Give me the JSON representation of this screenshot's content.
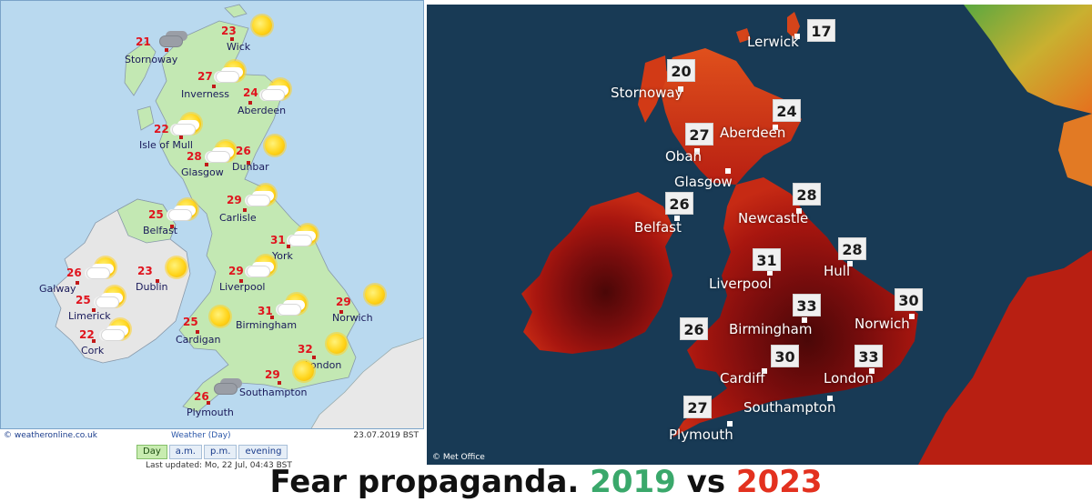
{
  "caption": {
    "prefix": "Fear propaganda.",
    "year1": "2019",
    "vs": "vs",
    "year2": "2023"
  },
  "left_map": {
    "source": "© weatheronline.co.uk",
    "product": "Weather (Day)",
    "date": "23.07.2019  BST",
    "tabs": [
      "Day",
      "a.m.",
      "p.m.",
      "evening"
    ],
    "active_tab": "Day",
    "last_updated": "Last updated: Mo, 22 Jul, 04:43 BST",
    "cities": [
      {
        "name": "Stornoway",
        "temp": "21",
        "icon": "cloud-icon-dark"
      },
      {
        "name": "Wick",
        "temp": "23",
        "icon": "sun-icon"
      },
      {
        "name": "Inverness",
        "temp": "27",
        "icon": "sun-cloud-icon"
      },
      {
        "name": "Aberdeen",
        "temp": "24",
        "icon": "sun-cloud-icon"
      },
      {
        "name": "Isle of Mull",
        "temp": "22",
        "icon": "sun-cloud-icon"
      },
      {
        "name": "Glasgow",
        "temp": "28",
        "icon": "sun-cloud-icon"
      },
      {
        "name": "Dunbar",
        "temp": "26",
        "icon": "sun-icon"
      },
      {
        "name": "Carlisle",
        "temp": "29",
        "icon": "sun-cloud-icon"
      },
      {
        "name": "Belfast",
        "temp": "25",
        "icon": "sun-cloud-icon"
      },
      {
        "name": "York",
        "temp": "31",
        "icon": "sun-cloud-icon"
      },
      {
        "name": "Galway",
        "temp": "26",
        "icon": "sun-cloud-icon"
      },
      {
        "name": "Dublin",
        "temp": "23",
        "icon": "sun-icon"
      },
      {
        "name": "Liverpool",
        "temp": "29",
        "icon": "sun-cloud-icon"
      },
      {
        "name": "Limerick",
        "temp": "25",
        "icon": "sun-cloud-icon"
      },
      {
        "name": "Norwich",
        "temp": "29",
        "icon": "sun-icon"
      },
      {
        "name": "Birmingham",
        "temp": "31",
        "icon": "sun-cloud-icon"
      },
      {
        "name": "Cork",
        "temp": "22",
        "icon": "sun-cloud-icon"
      },
      {
        "name": "Cardigan",
        "temp": "25",
        "icon": "sun-icon"
      },
      {
        "name": "London",
        "temp": "32",
        "icon": "sun-icon"
      },
      {
        "name": "Southampton",
        "temp": "29",
        "icon": "sun-icon"
      },
      {
        "name": "Plymouth",
        "temp": "26",
        "icon": "cloud-icon-dark"
      }
    ]
  },
  "right_map": {
    "credit": "© Met Office",
    "cities": [
      {
        "name": "Lerwick",
        "temp": "17"
      },
      {
        "name": "Stornoway",
        "temp": "20"
      },
      {
        "name": "Aberdeen",
        "temp": "24"
      },
      {
        "name": "Oban",
        "temp": "27"
      },
      {
        "name": "Glasgow",
        "temp": ""
      },
      {
        "name": "Newcastle",
        "temp": "28"
      },
      {
        "name": "Belfast",
        "temp": "26"
      },
      {
        "name": "Hull",
        "temp": "28"
      },
      {
        "name": "Liverpool",
        "temp": "31"
      },
      {
        "name": "Norwich",
        "temp": "30"
      },
      {
        "name": "Birmingham",
        "temp": "33"
      },
      {
        "name": "",
        "temp": "26"
      },
      {
        "name": "Cardiff",
        "temp": "30"
      },
      {
        "name": "London",
        "temp": "33"
      },
      {
        "name": "Southampton",
        "temp": ""
      },
      {
        "name": "Plymouth",
        "temp": "27"
      }
    ]
  }
}
